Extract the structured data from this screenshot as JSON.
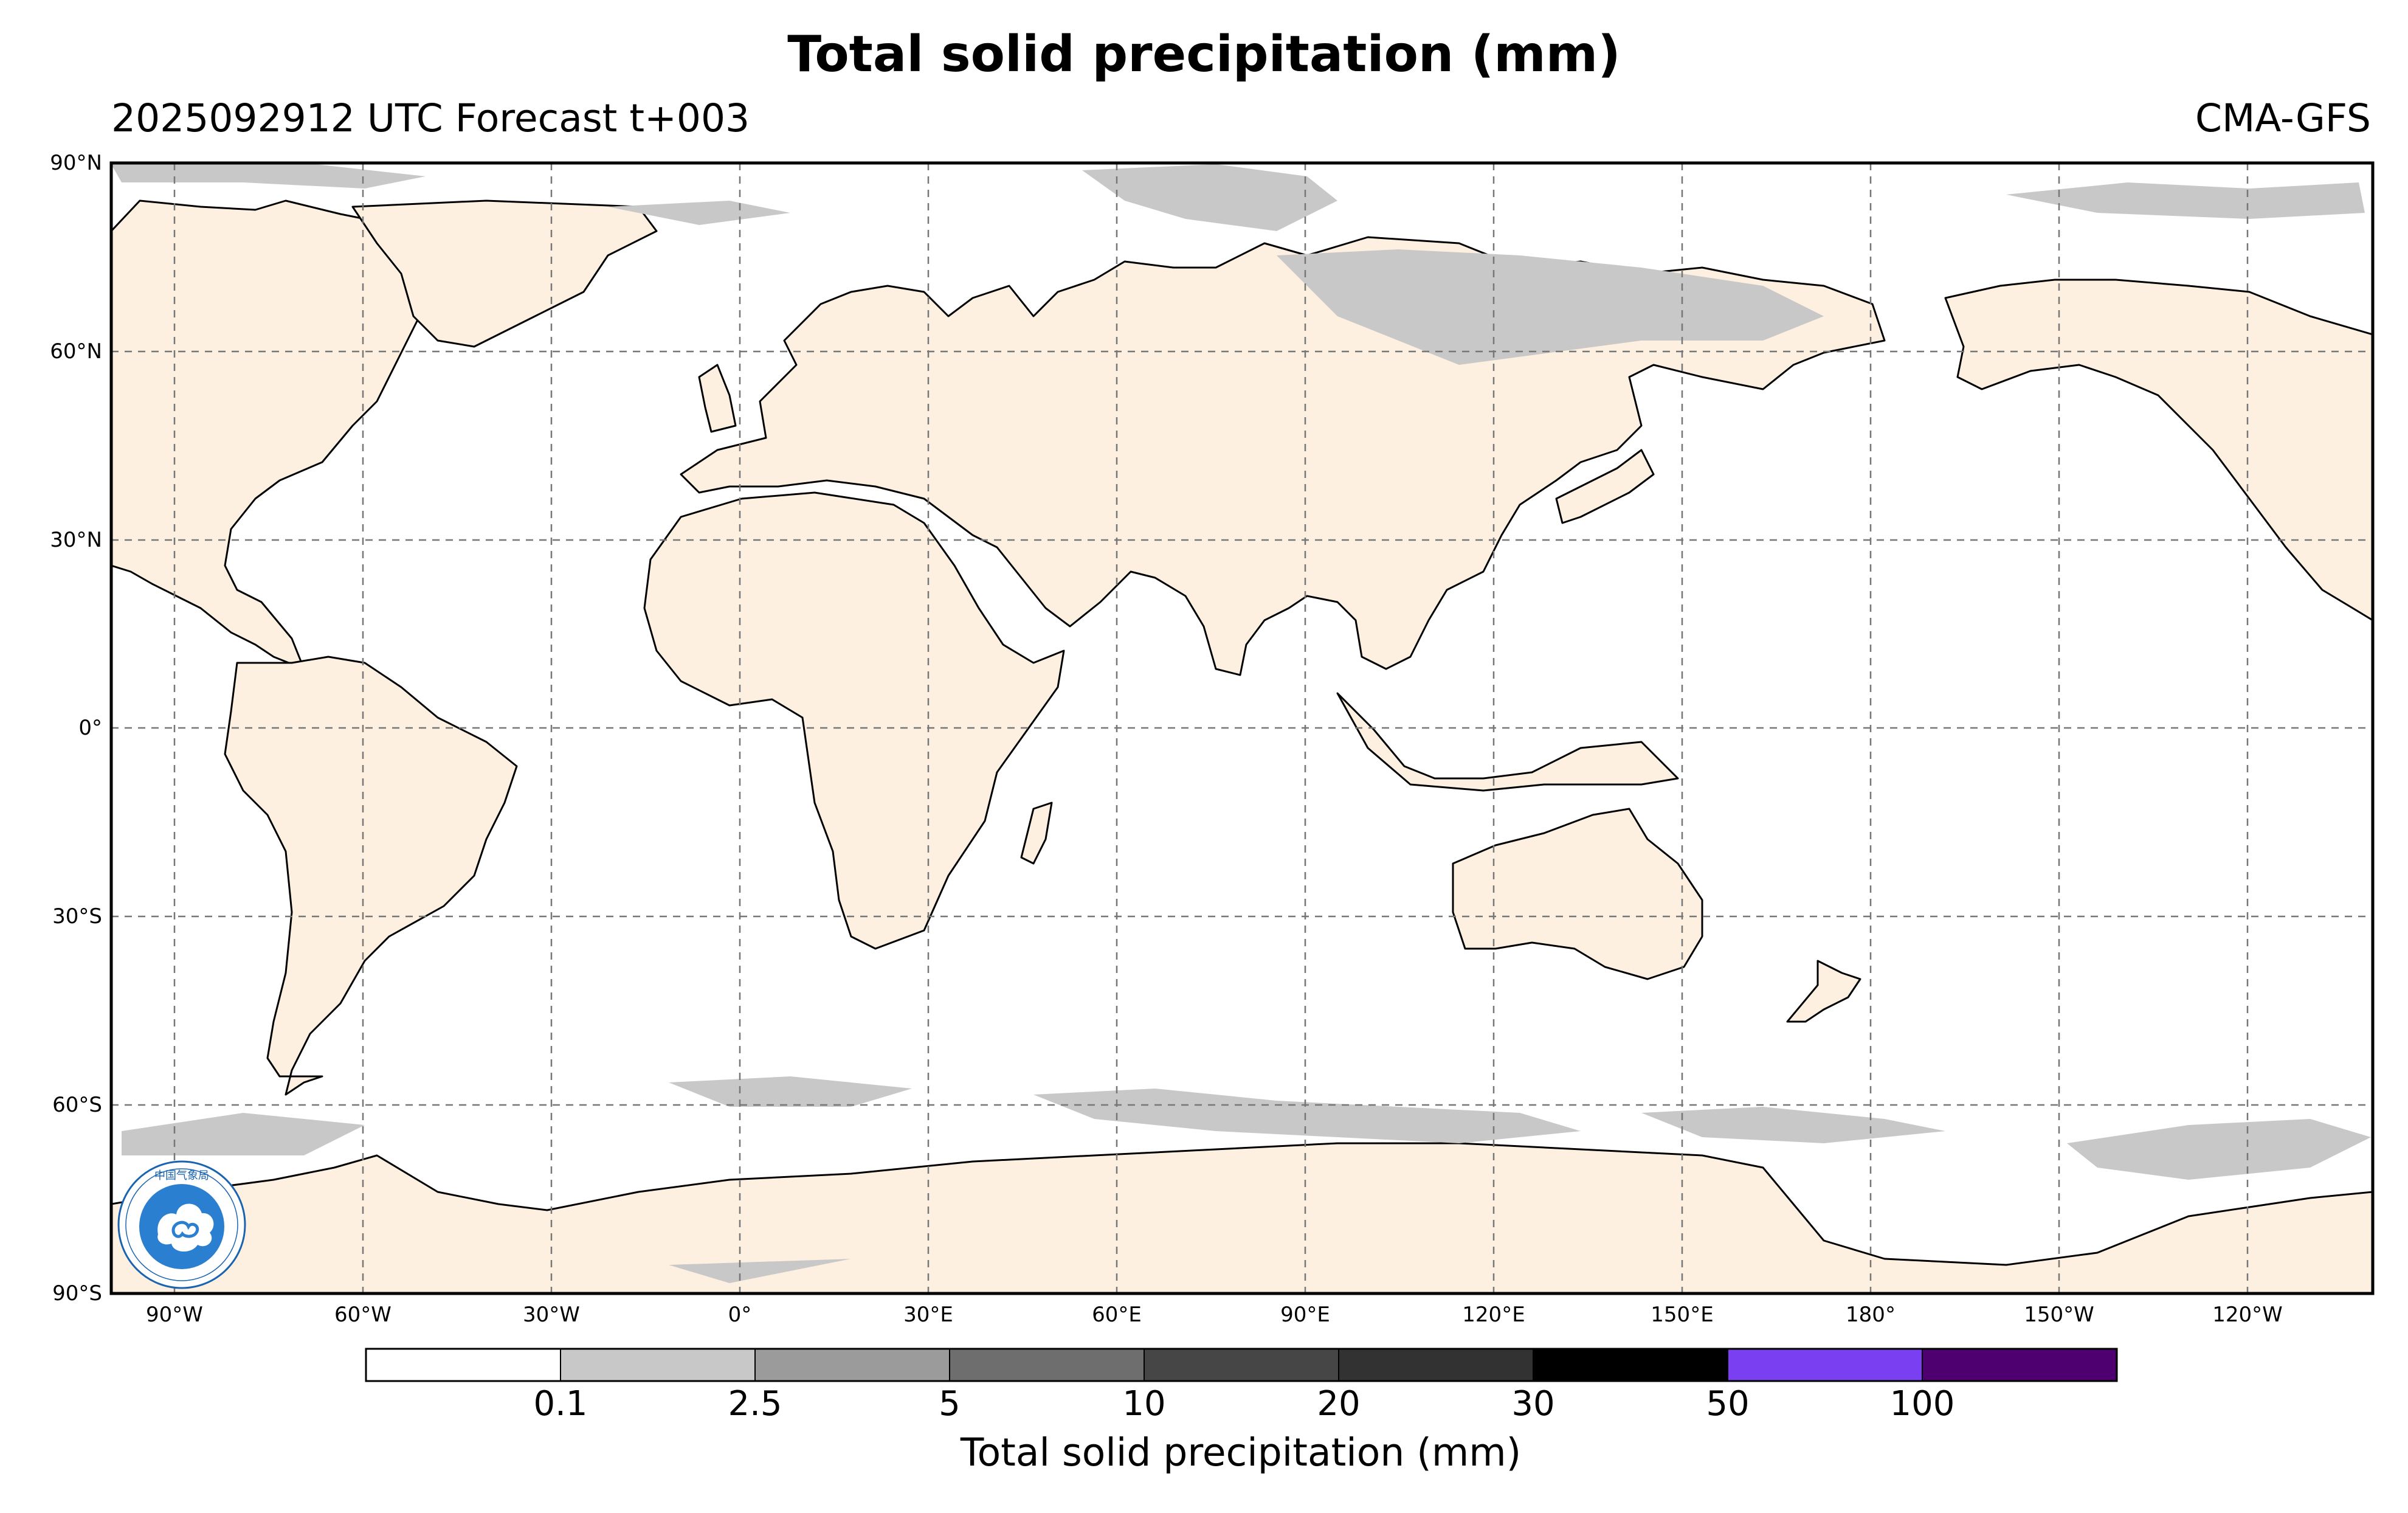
{
  "header": {
    "title": "Total solid precipitation (mm)",
    "subtitle_left": "2025092912 UTC Forecast t+003",
    "subtitle_right": "CMA-GFS"
  },
  "map": {
    "projection": "Plate Carrée, centered 60°E",
    "lat_ticks": [
      "90°N",
      "60°N",
      "30°N",
      "0°",
      "30°S",
      "60°S",
      "90°S"
    ],
    "lon_ticks": [
      "90°W",
      "60°W",
      "30°W",
      "0°",
      "30°E",
      "60°E",
      "90°E",
      "120°E",
      "150°E",
      "180°",
      "150°W",
      "120°W"
    ],
    "gridlines": true,
    "land_color": "#fdf0e1",
    "ocean_color": "#ffffff",
    "coastline_color": "#000000",
    "snow_color": "#c8c8c8"
  },
  "colorbar": {
    "title": "Total solid precipitation (mm)",
    "levels": [
      "0.1",
      "2.5",
      "5",
      "10",
      "20",
      "30",
      "50",
      "100"
    ],
    "colors": [
      "#ffffff",
      "#c8c8c8",
      "#9b9b9b",
      "#6e6e6e",
      "#464646",
      "#323232",
      "#000000",
      "#7a3ff0",
      "#4e0070"
    ]
  },
  "logo": {
    "name": "CMA logo",
    "text": "CHINA METEOROLOGICAL ADMINISTRATION"
  }
}
